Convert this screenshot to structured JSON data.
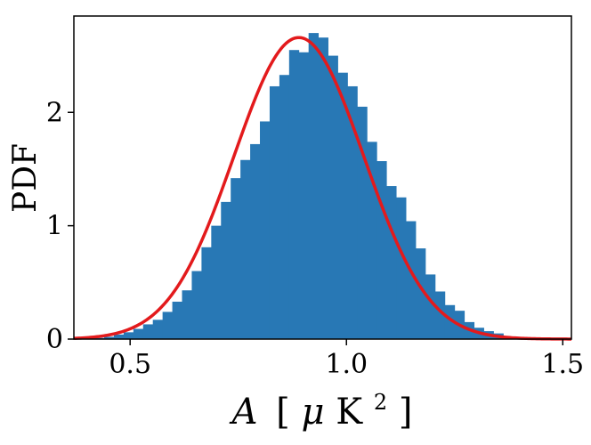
{
  "chart_data": {
    "type": "bar",
    "ylabel": "PDF",
    "xlabel_parts": {
      "var": "A",
      "open": "[",
      "mu": "μ",
      "unit": "K",
      "exp": "2",
      "close": "]"
    },
    "xlim": [
      0.37,
      1.52
    ],
    "ylim": [
      0,
      2.85
    ],
    "x_ticks": [
      0.5,
      1.0,
      1.5
    ],
    "x_tick_labels": [
      "0.5",
      "1.0",
      "1.5"
    ],
    "y_ticks": [
      0,
      1,
      2
    ],
    "y_tick_labels": [
      "0",
      "1",
      "2"
    ],
    "grid": false,
    "colors": {
      "histogram": "#2878b5",
      "fit": "#e31a1c"
    },
    "histogram": {
      "bin_width": 0.0225,
      "bin_left": [
        0.4175,
        0.44,
        0.4625,
        0.485,
        0.5075,
        0.53,
        0.5525,
        0.575,
        0.5975,
        0.62,
        0.6425,
        0.665,
        0.6875,
        0.71,
        0.7325,
        0.755,
        0.7775,
        0.8,
        0.8225,
        0.845,
        0.8675,
        0.89,
        0.9125,
        0.935,
        0.9575,
        0.98,
        1.0025,
        1.025,
        1.0475,
        1.07,
        1.0925,
        1.115,
        1.1375,
        1.16,
        1.1825,
        1.205,
        1.2275,
        1.25,
        1.2725,
        1.295,
        1.3175,
        1.34,
        1.3625
      ],
      "values": [
        0.01,
        0.02,
        0.04,
        0.06,
        0.09,
        0.13,
        0.17,
        0.24,
        0.33,
        0.43,
        0.6,
        0.81,
        1.0,
        1.21,
        1.42,
        1.58,
        1.72,
        1.92,
        2.23,
        2.33,
        2.55,
        2.53,
        2.7,
        2.66,
        2.5,
        2.35,
        2.23,
        2.05,
        1.74,
        1.57,
        1.35,
        1.25,
        1.04,
        0.8,
        0.57,
        0.42,
        0.3,
        0.25,
        0.15,
        0.1,
        0.07,
        0.05,
        0.02
      ]
    },
    "fit": {
      "type": "gaussian",
      "mean": 0.89,
      "sigma": 0.15,
      "peak": 2.66,
      "label": ""
    }
  }
}
